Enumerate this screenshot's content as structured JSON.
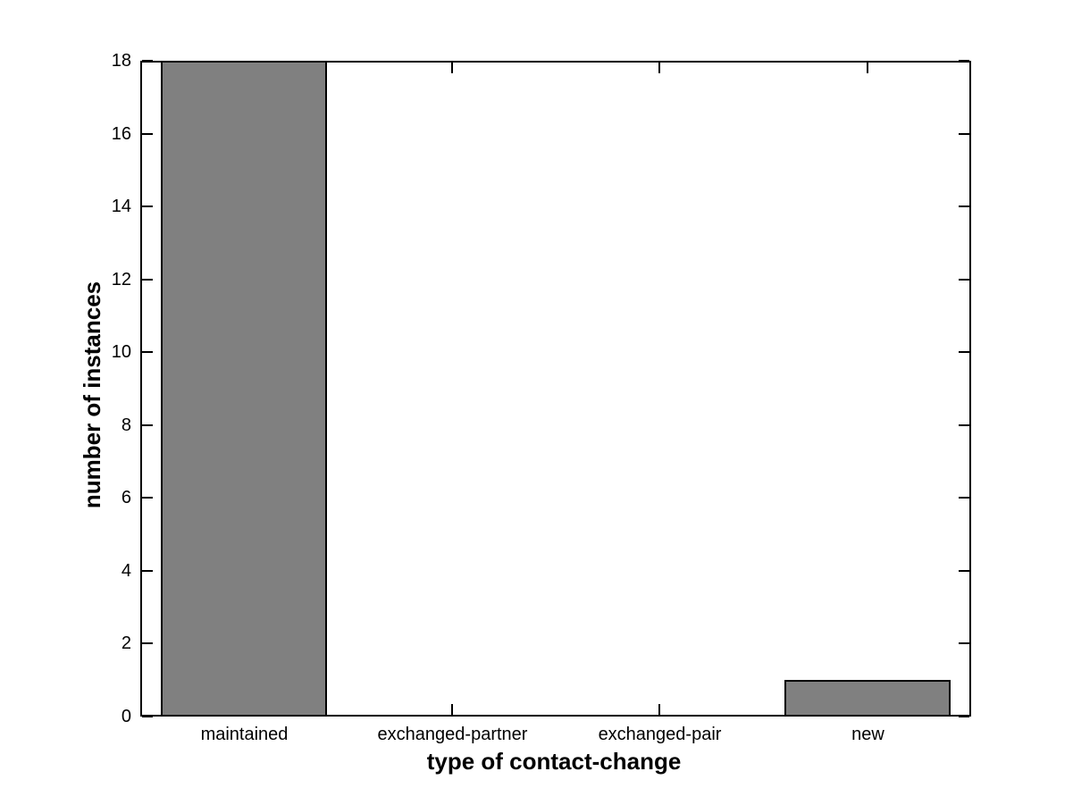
{
  "chart_data": {
    "type": "bar",
    "categories": [
      "maintained",
      "exchanged-partner",
      "exchanged-pair",
      "new"
    ],
    "values": [
      18,
      0,
      0,
      1
    ],
    "title": "",
    "xlabel": "type of contact-change",
    "ylabel": "number of instances",
    "ylim": [
      0,
      18
    ],
    "yticks": [
      0,
      2,
      4,
      6,
      8,
      10,
      12,
      14,
      16,
      18
    ],
    "ytick_labels": [
      "0",
      "2",
      "4",
      "6",
      "8",
      "10",
      "12",
      "14",
      "16",
      "18"
    ],
    "bar_width_fraction": 0.8,
    "grid": "off",
    "legend_position": "none",
    "colors": {
      "bar_fill": "#808080",
      "bar_edge": "#000000",
      "axis": "#000000",
      "text": "#000000",
      "background": "#ffffff"
    }
  }
}
